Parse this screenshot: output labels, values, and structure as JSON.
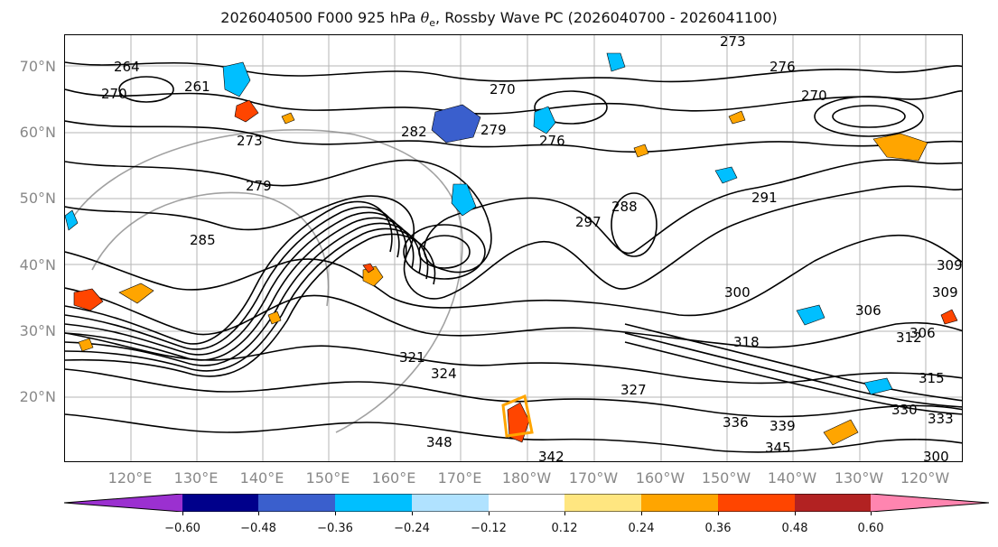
{
  "title": {
    "prefix": "2026040500 F000 925 hPa ",
    "symbol": "θ",
    "subscript": "e",
    "suffix": ", Rossby Wave PC (2026040700 - 2026041100)"
  },
  "latitude_labels": [
    "70°N",
    "60°N",
    "50°N",
    "40°N",
    "30°N",
    "20°N"
  ],
  "longitude_labels": [
    "120°E",
    "130°E",
    "140°E",
    "150°E",
    "160°E",
    "170°E",
    "180°W",
    "170°W",
    "160°W",
    "150°W",
    "140°W",
    "130°W",
    "120°W"
  ],
  "contour_labels": [
    "264",
    "261",
    "270",
    "273",
    "270",
    "282",
    "279",
    "276",
    "273",
    "276",
    "270",
    "279",
    "285",
    "288",
    "291",
    "297",
    "300",
    "306",
    "309",
    "312",
    "315",
    "318",
    "321",
    "324",
    "327",
    "330",
    "333",
    "336",
    "339",
    "342",
    "345",
    "348",
    "309",
    "306",
    "300"
  ],
  "colorbar": {
    "ticks": [
      "−0.60",
      "−0.48",
      "−0.36",
      "−0.24",
      "−0.12",
      "0.12",
      "0.24",
      "0.36",
      "0.48",
      "0.60"
    ],
    "colors": [
      "#9b30d0",
      "#00008b",
      "#3a5fcd",
      "#00bfff",
      "#b0e2ff",
      "#ffffff",
      "#ffe680",
      "#ffa500",
      "#ff4500",
      "#b22222",
      "#ff85b0"
    ]
  }
}
